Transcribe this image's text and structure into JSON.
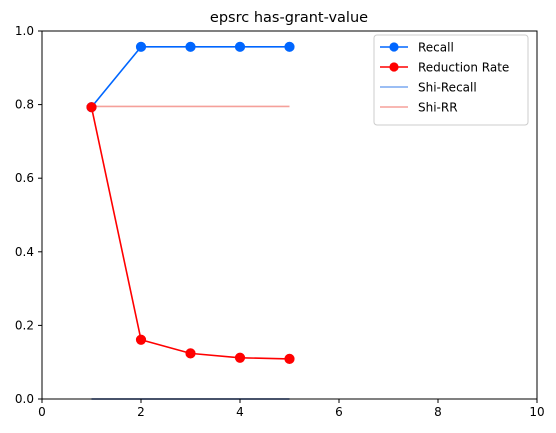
{
  "chart_data": {
    "type": "line",
    "title": "epsrc has-grant-value",
    "xlabel": "",
    "ylabel": "",
    "xlim": [
      0,
      10
    ],
    "ylim": [
      0.0,
      1.0
    ],
    "xticks": [
      0,
      2,
      4,
      6,
      8,
      10
    ],
    "yticks": [
      0.0,
      0.2,
      0.4,
      0.6,
      0.8,
      1.0
    ],
    "xtick_labels": [
      "0",
      "2",
      "4",
      "6",
      "8",
      "10"
    ],
    "ytick_labels": [
      "0.0",
      "0.2",
      "0.4",
      "0.6",
      "0.8",
      "1.0"
    ],
    "grid": false,
    "legend_position": "top-right",
    "series": [
      {
        "name": "Recall",
        "x": [
          1,
          2,
          3,
          4,
          5
        ],
        "y": [
          0.793,
          0.957,
          0.957,
          0.957,
          0.957
        ],
        "color": "#0066ff",
        "marker": true
      },
      {
        "name": "Reduction Rate",
        "x": [
          1,
          2,
          3,
          4,
          5
        ],
        "y": [
          0.793,
          0.161,
          0.124,
          0.112,
          0.109
        ],
        "color": "#ff0000",
        "marker": true
      },
      {
        "name": "Shi-Recall",
        "x": [
          1,
          5
        ],
        "y": [
          0.0,
          0.0
        ],
        "color": "#7aa9f0",
        "marker": false,
        "baseline_color": "#1f4aa8"
      },
      {
        "name": "Shi-RR",
        "x": [
          1,
          5
        ],
        "y": [
          0.795,
          0.795
        ],
        "color": "#f5a09a",
        "marker": false
      }
    ]
  }
}
